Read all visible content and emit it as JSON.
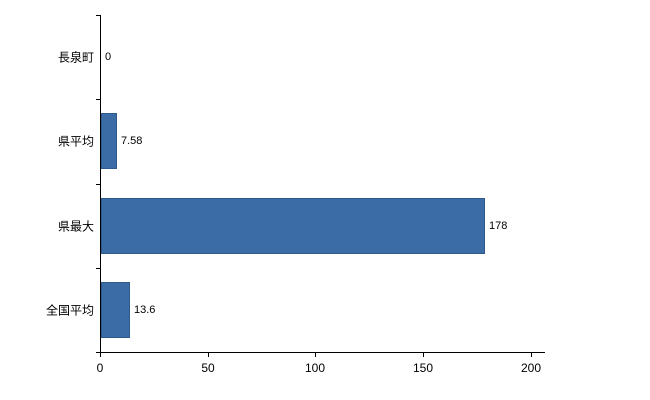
{
  "chart_data": {
    "type": "bar",
    "orientation": "horizontal",
    "categories": [
      "長泉町",
      "県平均",
      "県最大",
      "全国平均"
    ],
    "values": [
      0,
      7.58,
      178,
      13.6
    ],
    "value_labels": [
      "0",
      "7.58",
      "178",
      "13.6"
    ],
    "x_tick_labels": [
      "0",
      "50",
      "100",
      "150",
      "200"
    ],
    "x_tick_values": [
      0,
      50,
      100,
      150,
      200
    ],
    "xlim": [
      0,
      200
    ],
    "bar_color": "#3c6ca6",
    "bar_border_color": "#2f5a8c",
    "axis_color": "#000000",
    "text_color": "#000000",
    "grid": false,
    "legend": false
  }
}
